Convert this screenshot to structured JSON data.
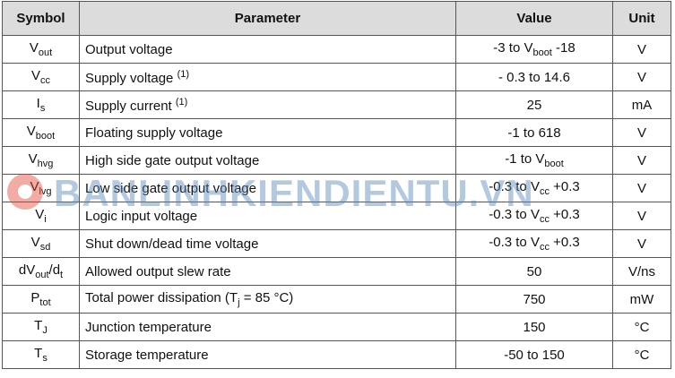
{
  "table": {
    "header": [
      "Symbol",
      "Parameter",
      "Value",
      "Unit"
    ],
    "rows": [
      [
        [
          "V",
          {
            "sub": "out"
          }
        ],
        [
          "Output voltage"
        ],
        [
          "-3 to V",
          {
            "sub": "boot"
          },
          " -18"
        ],
        [
          "V"
        ]
      ],
      [
        [
          "V",
          {
            "sub": "cc"
          }
        ],
        [
          "Supply voltage ",
          {
            "sup": "(1)"
          }
        ],
        [
          "- 0.3 to 14.6"
        ],
        [
          "V"
        ]
      ],
      [
        [
          "I",
          {
            "sub": "s"
          }
        ],
        [
          "Supply current ",
          {
            "sup": "(1)"
          }
        ],
        [
          "25"
        ],
        [
          "mA"
        ]
      ],
      [
        [
          "V",
          {
            "sub": "boot"
          }
        ],
        [
          "Floating supply voltage"
        ],
        [
          "-1 to 618"
        ],
        [
          "V"
        ]
      ],
      [
        [
          "V",
          {
            "sub": "hvg"
          }
        ],
        [
          "High side gate output voltage"
        ],
        [
          "-1 to V",
          {
            "sub": "boot"
          }
        ],
        [
          "V"
        ]
      ],
      [
        [
          "V",
          {
            "sub": "lvg"
          }
        ],
        [
          "Low side gate output voltage"
        ],
        [
          "-0.3 to V",
          {
            "sub": "cc"
          },
          " +0.3"
        ],
        [
          "V"
        ]
      ],
      [
        [
          "V",
          {
            "sub": "i"
          }
        ],
        [
          "Logic input voltage"
        ],
        [
          "-0.3 to V",
          {
            "sub": "cc"
          },
          " +0.3"
        ],
        [
          "V"
        ]
      ],
      [
        [
          "V",
          {
            "sub": "sd"
          }
        ],
        [
          "Shut down/dead time voltage"
        ],
        [
          "-0.3 to V",
          {
            "sub": "cc"
          },
          " +0.3"
        ],
        [
          "V"
        ]
      ],
      [
        [
          "dV",
          {
            "sub": "out"
          },
          "/d",
          {
            "sub": "t"
          }
        ],
        [
          "Allowed output slew rate"
        ],
        [
          "50"
        ],
        [
          "V/ns"
        ]
      ],
      [
        [
          "P",
          {
            "sub": "tot"
          }
        ],
        [
          "Total power dissipation (T",
          {
            "sub": "j"
          },
          " = 85 °C)"
        ],
        [
          "750"
        ],
        [
          "mW"
        ]
      ],
      [
        [
          "T",
          {
            "sub": "J"
          }
        ],
        [
          "Junction temperature"
        ],
        [
          "150"
        ],
        [
          "°C"
        ]
      ],
      [
        [
          "T",
          {
            "sub": "s"
          }
        ],
        [
          "Storage temperature"
        ],
        [
          "-50 to 150"
        ],
        [
          "°C"
        ]
      ]
    ]
  },
  "watermark": "BANLINHKIENDIENTU.VN"
}
